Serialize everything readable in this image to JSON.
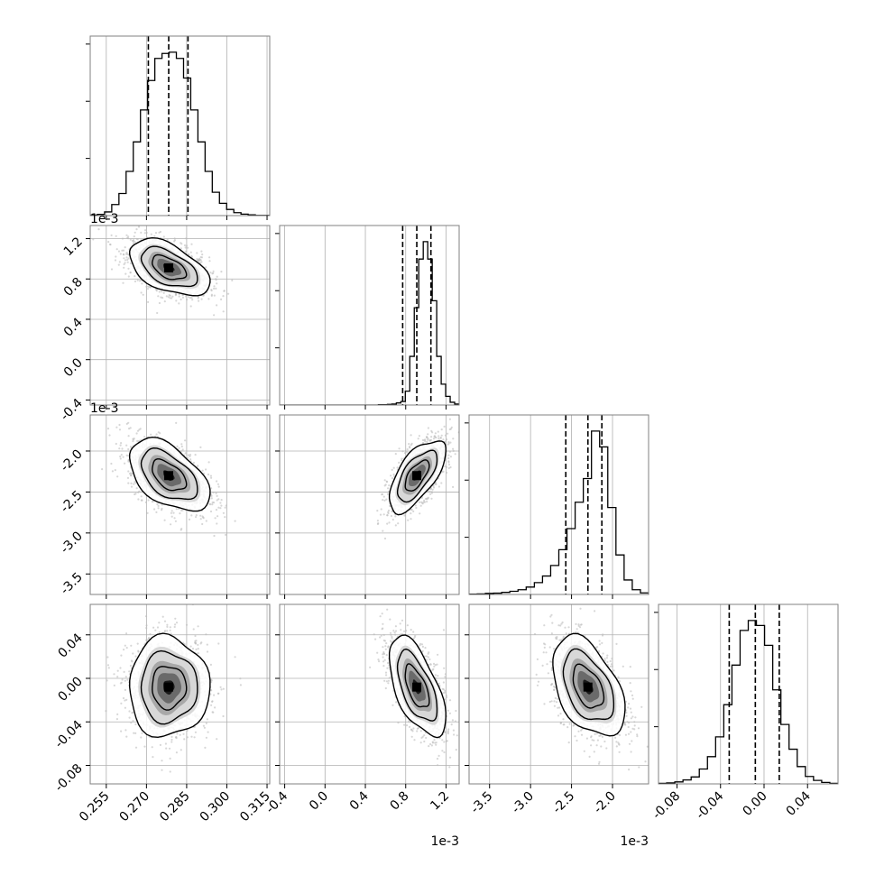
{
  "chart_data": {
    "type": "corner",
    "grid": true,
    "params": [
      {
        "index": 0,
        "range": [
          0.249,
          0.316
        ],
        "ticks": [
          0.255,
          0.27,
          0.285,
          0.3,
          0.315
        ],
        "tick_labels": [
          "0.255",
          "0.270",
          "0.285",
          "0.300",
          "0.315"
        ],
        "offset": "",
        "quantiles": [
          0.2707,
          0.2783,
          0.2855
        ],
        "mean": 0.2783,
        "sd": 0.0075
      },
      {
        "index": 1,
        "range": [
          -0.45,
          1.33
        ],
        "ticks": [
          -0.4,
          0.0,
          0.4,
          0.8,
          1.2
        ],
        "tick_labels": [
          "-0.4",
          "0.0",
          "0.4",
          "0.8",
          "1.2"
        ],
        "offset": "1e-3",
        "quantiles": [
          0.77,
          0.91,
          1.05
        ],
        "mean": 0.91,
        "sd": 0.14
      },
      {
        "index": 2,
        "range": [
          -3.75,
          -1.56
        ],
        "ticks": [
          -3.5,
          -3.0,
          -2.5,
          -2.0
        ],
        "tick_labels": [
          "-3.5",
          "-3.0",
          "-2.5",
          "-2.0"
        ],
        "offset": "1e-3",
        "quantiles": [
          -2.57,
          -2.3,
          -2.13
        ],
        "mean": -2.3,
        "sd": 0.22
      },
      {
        "index": 3,
        "range": [
          -0.097,
          0.068
        ],
        "ticks": [
          -0.08,
          -0.04,
          0.0,
          0.04
        ],
        "tick_labels": [
          "-0.08",
          "-0.04",
          "0.00",
          "0.04"
        ],
        "offset": "",
        "quantiles": [
          -0.032,
          -0.008,
          0.014
        ],
        "mean": -0.008,
        "sd": 0.023
      }
    ],
    "histograms": [
      {
        "param": 0,
        "bin_edges_range": [
          0.249,
          0.316
        ],
        "counts": [
          2,
          5,
          15,
          45,
          90,
          180,
          300,
          430,
          550,
          640,
          660,
          665,
          640,
          560,
          430,
          300,
          180,
          95,
          50,
          25,
          12,
          6,
          3,
          1,
          1
        ]
      },
      {
        "param": 1,
        "bin_edges_range": [
          -0.45,
          1.33
        ],
        "counts": [
          0,
          0,
          0,
          0,
          0,
          0,
          0,
          0,
          0,
          0,
          0,
          0,
          0,
          0,
          0,
          0,
          0,
          0,
          0,
          0,
          0,
          0,
          1,
          1,
          2,
          3,
          6,
          10,
          40,
          140,
          280,
          420,
          470,
          420,
          300,
          140,
          60,
          25,
          8,
          3
        ]
      },
      {
        "param": 2,
        "bin_edges_range": [
          -3.75,
          -1.56
        ],
        "counts": [
          1,
          2,
          4,
          5,
          8,
          12,
          18,
          28,
          45,
          70,
          110,
          170,
          250,
          350,
          440,
          620,
          560,
          330,
          150,
          55,
          18,
          6
        ]
      },
      {
        "param": 3,
        "bin_edges_range": [
          -0.097,
          0.068
        ],
        "counts": [
          1,
          2,
          4,
          8,
          14,
          30,
          55,
          95,
          160,
          240,
          310,
          330,
          320,
          280,
          190,
          120,
          70,
          35,
          15,
          7,
          3,
          1
        ]
      }
    ],
    "pairs": [
      {
        "x_param": 0,
        "y_param": 1,
        "correlation": -0.5
      },
      {
        "x_param": 0,
        "y_param": 2,
        "correlation": -0.5
      },
      {
        "x_param": 1,
        "y_param": 2,
        "correlation": 0.65
      },
      {
        "x_param": 0,
        "y_param": 3,
        "correlation": 0.0
      },
      {
        "x_param": 1,
        "y_param": 3,
        "correlation": -0.6
      },
      {
        "x_param": 2,
        "y_param": 3,
        "correlation": -0.45
      }
    ],
    "colors": {
      "hist_line": "#000000",
      "contour": "#000000",
      "scatter": "#bdbdbd",
      "density": "#000000",
      "grid": "#b0b0b0",
      "spine": "#808080"
    }
  }
}
